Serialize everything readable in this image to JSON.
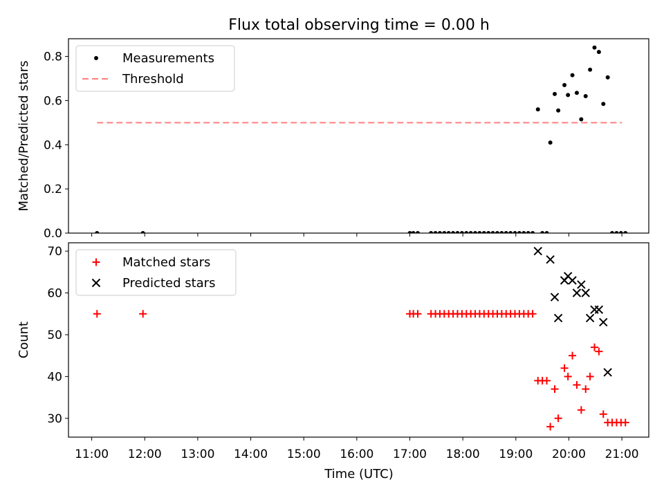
{
  "title": "Flux total observing time = 0.00 h",
  "xlabel": "Time (UTC)",
  "x_ticks": [
    "11:00",
    "12:00",
    "13:00",
    "14:00",
    "15:00",
    "16:00",
    "17:00",
    "18:00",
    "19:00",
    "20:00",
    "21:00"
  ],
  "chart_data": [
    {
      "type": "scatter",
      "ylabel": "Matched/Predicted stars",
      "ylim": [
        0,
        0.88
      ],
      "y_ticks": [
        "0.0",
        "0.2",
        "0.4",
        "0.6",
        "0.8"
      ],
      "legend_position": "top-left",
      "series": [
        {
          "name": "Measurements",
          "color": "#000000",
          "marker": "dot",
          "points": [
            [
              "11:06",
              0
            ],
            [
              "11:58",
              0
            ],
            [
              "17:00",
              0
            ],
            [
              "17:04",
              0
            ],
            [
              "17:09",
              0
            ],
            [
              "17:24",
              0
            ],
            [
              "17:29",
              0
            ],
            [
              "17:34",
              0
            ],
            [
              "17:39",
              0
            ],
            [
              "17:44",
              0
            ],
            [
              "17:49",
              0
            ],
            [
              "17:54",
              0
            ],
            [
              "17:59",
              0
            ],
            [
              "18:04",
              0
            ],
            [
              "18:09",
              0
            ],
            [
              "18:14",
              0
            ],
            [
              "18:19",
              0
            ],
            [
              "18:24",
              0
            ],
            [
              "18:29",
              0
            ],
            [
              "18:34",
              0
            ],
            [
              "18:39",
              0
            ],
            [
              "18:44",
              0
            ],
            [
              "18:49",
              0
            ],
            [
              "18:54",
              0
            ],
            [
              "18:59",
              0
            ],
            [
              "19:04",
              0
            ],
            [
              "19:09",
              0
            ],
            [
              "19:14",
              0
            ],
            [
              "19:19",
              0
            ],
            [
              "19:25",
              0.56
            ],
            [
              "19:30",
              0
            ],
            [
              "19:35",
              0
            ],
            [
              "19:39",
              0.41
            ],
            [
              "19:44",
              0.63
            ],
            [
              "19:48",
              0.555
            ],
            [
              "19:55",
              0.67
            ],
            [
              "19:59",
              0.625
            ],
            [
              "20:04",
              0.715
            ],
            [
              "20:09",
              0.635
            ],
            [
              "20:14",
              0.515
            ],
            [
              "20:19",
              0.62
            ],
            [
              "20:24",
              0.74
            ],
            [
              "20:29",
              0.84
            ],
            [
              "20:34",
              0.82
            ],
            [
              "20:39",
              0.585
            ],
            [
              "20:44",
              0.705
            ],
            [
              "20:49",
              0
            ],
            [
              "20:54",
              0
            ],
            [
              "20:59",
              0
            ],
            [
              "21:04",
              0
            ]
          ]
        },
        {
          "name": "Threshold",
          "color": "#ff7f7f",
          "style": "dashed",
          "points": [
            [
              "11:06",
              0.5
            ],
            [
              "21:00",
              0.5
            ]
          ]
        }
      ]
    },
    {
      "type": "scatter",
      "ylabel": "Count",
      "ylim": [
        25.5,
        72
      ],
      "y_ticks": [
        "30",
        "40",
        "50",
        "60",
        "70"
      ],
      "legend_position": "top-left",
      "series": [
        {
          "name": "Matched stars",
          "color": "#ff0000",
          "marker": "plus",
          "points": [
            [
              "11:06",
              55
            ],
            [
              "11:58",
              55
            ],
            [
              "17:00",
              55
            ],
            [
              "17:04",
              55
            ],
            [
              "17:09",
              55
            ],
            [
              "17:24",
              55
            ],
            [
              "17:29",
              55
            ],
            [
              "17:34",
              55
            ],
            [
              "17:39",
              55
            ],
            [
              "17:44",
              55
            ],
            [
              "17:49",
              55
            ],
            [
              "17:54",
              55
            ],
            [
              "17:59",
              55
            ],
            [
              "18:04",
              55
            ],
            [
              "18:09",
              55
            ],
            [
              "18:14",
              55
            ],
            [
              "18:19",
              55
            ],
            [
              "18:24",
              55
            ],
            [
              "18:29",
              55
            ],
            [
              "18:34",
              55
            ],
            [
              "18:39",
              55
            ],
            [
              "18:44",
              55
            ],
            [
              "18:49",
              55
            ],
            [
              "18:54",
              55
            ],
            [
              "18:59",
              55
            ],
            [
              "19:04",
              55
            ],
            [
              "19:09",
              55
            ],
            [
              "19:14",
              55
            ],
            [
              "19:19",
              55
            ],
            [
              "19:25",
              39
            ],
            [
              "19:30",
              39
            ],
            [
              "19:35",
              39
            ],
            [
              "19:39",
              28
            ],
            [
              "19:44",
              37
            ],
            [
              "19:48",
              30
            ],
            [
              "19:55",
              42
            ],
            [
              "19:59",
              40
            ],
            [
              "20:04",
              45
            ],
            [
              "20:09",
              38
            ],
            [
              "20:14",
              32
            ],
            [
              "20:19",
              37
            ],
            [
              "20:24",
              40
            ],
            [
              "20:29",
              47
            ],
            [
              "20:34",
              46
            ],
            [
              "20:39",
              31
            ],
            [
              "20:44",
              29
            ],
            [
              "20:49",
              29
            ],
            [
              "20:54",
              29
            ],
            [
              "20:59",
              29
            ],
            [
              "21:04",
              29
            ]
          ]
        },
        {
          "name": "Predicted stars",
          "color": "#000000",
          "marker": "x",
          "points": [
            [
              "19:25",
              70
            ],
            [
              "19:39",
              68
            ],
            [
              "19:44",
              59
            ],
            [
              "19:48",
              54
            ],
            [
              "19:55",
              63
            ],
            [
              "19:59",
              64
            ],
            [
              "20:04",
              63
            ],
            [
              "20:09",
              60
            ],
            [
              "20:14",
              62
            ],
            [
              "20:19",
              60
            ],
            [
              "20:24",
              54
            ],
            [
              "20:29",
              56
            ],
            [
              "20:34",
              56
            ],
            [
              "20:39",
              53
            ],
            [
              "20:44",
              41
            ]
          ]
        }
      ]
    }
  ]
}
